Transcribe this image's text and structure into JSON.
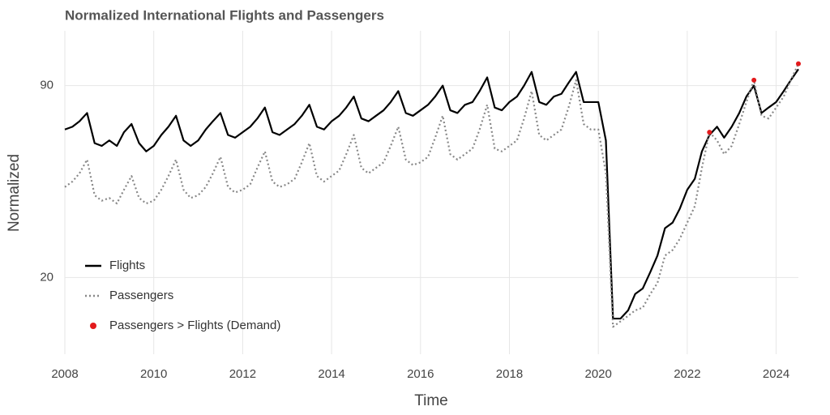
{
  "chart_data": {
    "type": "line",
    "title": "Normalized International Flights and Passengers",
    "x_label": "Time",
    "y_label": "Normalized",
    "xlim": [
      2008,
      2024.5
    ],
    "xticks": [
      2008,
      2010,
      2012,
      2014,
      2016,
      2018,
      2020,
      2022,
      2024
    ],
    "ylim": [
      -8,
      110
    ],
    "yticks": [
      20,
      90
    ],
    "grid": true,
    "legend": "bottom-left",
    "x": [
      2008,
      2008.17,
      2008.33,
      2008.5,
      2008.67,
      2008.83,
      2009,
      2009.17,
      2009.33,
      2009.5,
      2009.67,
      2009.83,
      2010,
      2010.17,
      2010.33,
      2010.5,
      2010.67,
      2010.83,
      2011,
      2011.17,
      2011.33,
      2011.5,
      2011.67,
      2011.83,
      2012,
      2012.17,
      2012.33,
      2012.5,
      2012.67,
      2012.83,
      2013,
      2013.17,
      2013.33,
      2013.5,
      2013.67,
      2013.83,
      2014,
      2014.17,
      2014.33,
      2014.5,
      2014.67,
      2014.83,
      2015,
      2015.17,
      2015.33,
      2015.5,
      2015.67,
      2015.83,
      2016,
      2016.17,
      2016.33,
      2016.5,
      2016.67,
      2016.83,
      2017,
      2017.17,
      2017.33,
      2017.5,
      2017.67,
      2017.83,
      2018,
      2018.17,
      2018.33,
      2018.5,
      2018.67,
      2018.83,
      2019,
      2019.17,
      2019.33,
      2019.5,
      2019.67,
      2019.83,
      2020,
      2020.17,
      2020.33,
      2020.5,
      2020.67,
      2020.83,
      2021,
      2021.17,
      2021.33,
      2021.5,
      2021.67,
      2021.83,
      2022,
      2022.17,
      2022.33,
      2022.5,
      2022.67,
      2022.83,
      2023,
      2023.17,
      2023.33,
      2023.5,
      2023.67,
      2023.83,
      2024,
      2024.17,
      2024.33,
      2024.5
    ],
    "series": [
      {
        "name": "Flights",
        "color": "#000000",
        "kind": "line",
        "dash": false,
        "values": [
          74,
          75,
          77,
          80,
          69,
          68,
          70,
          68,
          73,
          76,
          69,
          66,
          68,
          72,
          75,
          79,
          70,
          68,
          70,
          74,
          77,
          80,
          72,
          71,
          73,
          75,
          78,
          82,
          73,
          72,
          74,
          76,
          79,
          83,
          75,
          74,
          77,
          79,
          82,
          86,
          78,
          77,
          79,
          81,
          84,
          88,
          80,
          79,
          81,
          83,
          86,
          90,
          81,
          80,
          83,
          84,
          88,
          93,
          82,
          81,
          84,
          86,
          90,
          95,
          84,
          83,
          86,
          87,
          91,
          95,
          84,
          84,
          84,
          70,
          5,
          5,
          8,
          14,
          16,
          22,
          28,
          38,
          40,
          45,
          52,
          56,
          66,
          72,
          75,
          71,
          75,
          80,
          86,
          90,
          80,
          82,
          84,
          88,
          92,
          96
        ]
      },
      {
        "name": "Passengers",
        "color": "#888888",
        "kind": "line",
        "dash": true,
        "values": [
          53,
          55,
          58,
          63,
          50,
          48,
          49,
          47,
          52,
          57,
          49,
          47,
          48,
          52,
          57,
          63,
          52,
          49,
          50,
          53,
          58,
          64,
          53,
          51,
          52,
          54,
          60,
          66,
          55,
          53,
          54,
          56,
          62,
          69,
          57,
          55,
          57,
          59,
          65,
          72,
          60,
          58,
          60,
          62,
          68,
          75,
          63,
          61,
          62,
          64,
          71,
          79,
          65,
          63,
          65,
          67,
          74,
          83,
          67,
          66,
          68,
          70,
          78,
          88,
          72,
          70,
          72,
          74,
          82,
          92,
          76,
          74,
          74,
          58,
          2,
          4,
          6,
          8,
          9,
          14,
          18,
          28,
          30,
          34,
          40,
          46,
          60,
          73,
          70,
          65,
          68,
          76,
          84,
          92,
          79,
          78,
          82,
          86,
          92,
          98
        ]
      },
      {
        "name": "Passengers > Flights (Demand)",
        "color": "#e31a1c",
        "kind": "scatter",
        "dash": false,
        "values": [
          null,
          null,
          null,
          null,
          null,
          null,
          null,
          null,
          null,
          null,
          null,
          null,
          null,
          null,
          null,
          null,
          null,
          null,
          null,
          null,
          null,
          null,
          null,
          null,
          null,
          null,
          null,
          null,
          null,
          null,
          null,
          null,
          null,
          null,
          null,
          null,
          null,
          null,
          null,
          null,
          null,
          null,
          null,
          null,
          null,
          null,
          null,
          null,
          null,
          null,
          null,
          null,
          null,
          null,
          null,
          null,
          null,
          null,
          null,
          null,
          null,
          null,
          null,
          null,
          null,
          null,
          null,
          null,
          null,
          null,
          null,
          null,
          null,
          null,
          null,
          null,
          null,
          null,
          null,
          null,
          null,
          null,
          null,
          null,
          null,
          null,
          null,
          73,
          null,
          null,
          null,
          null,
          null,
          92,
          null,
          null,
          null,
          null,
          null,
          98
        ]
      }
    ]
  }
}
